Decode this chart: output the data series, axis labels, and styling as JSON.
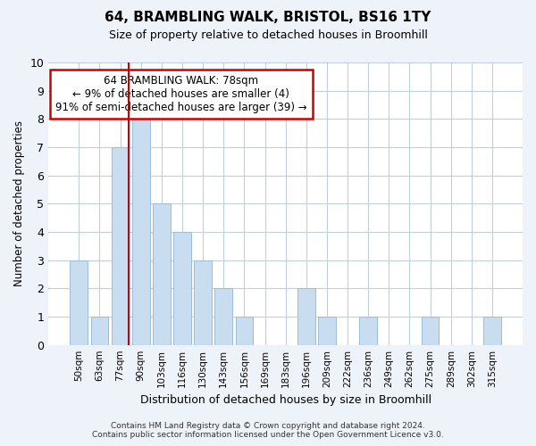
{
  "title1": "64, BRAMBLING WALK, BRISTOL, BS16 1TY",
  "title2": "Size of property relative to detached houses in Broomhill",
  "xlabel": "Distribution of detached houses by size in Broomhill",
  "ylabel": "Number of detached properties",
  "categories": [
    "50sqm",
    "63sqm",
    "77sqm",
    "90sqm",
    "103sqm",
    "116sqm",
    "130sqm",
    "143sqm",
    "156sqm",
    "169sqm",
    "183sqm",
    "196sqm",
    "209sqm",
    "222sqm",
    "236sqm",
    "249sqm",
    "262sqm",
    "275sqm",
    "289sqm",
    "302sqm",
    "315sqm"
  ],
  "values": [
    3,
    1,
    7,
    8,
    5,
    4,
    3,
    2,
    1,
    0,
    0,
    2,
    1,
    0,
    1,
    0,
    0,
    1,
    0,
    0,
    1
  ],
  "bar_color": "#c9ddf0",
  "bar_edgecolor": "#9bbdd8",
  "highlight_index": 2,
  "highlight_line_color": "#cc0000",
  "ylim": [
    0,
    10
  ],
  "yticks": [
    0,
    1,
    2,
    3,
    4,
    5,
    6,
    7,
    8,
    9,
    10
  ],
  "annotation_text": "64 BRAMBLING WALK: 78sqm\n← 9% of detached houses are smaller (4)\n91% of semi-detached houses are larger (39) →",
  "annotation_box_facecolor": "#ffffff",
  "annotation_box_edgecolor": "#cc0000",
  "footer1": "Contains HM Land Registry data © Crown copyright and database right 2024.",
  "footer2": "Contains public sector information licensed under the Open Government Licence v3.0.",
  "bg_color": "#eef2f9",
  "plot_bg_color": "#ffffff",
  "grid_color": "#c0cfe0"
}
